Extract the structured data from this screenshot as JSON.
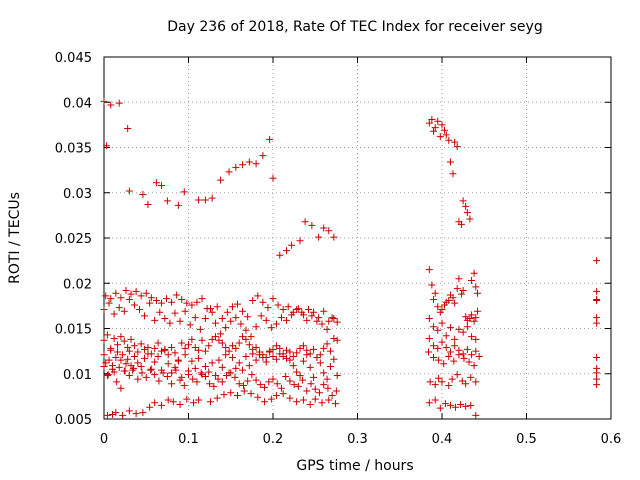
{
  "chart_data": {
    "type": "scatter",
    "title": "Day 236 of 2018, Rate Of TEC Index for receiver seyg",
    "xlabel": "GPS time / hours",
    "ylabel": "ROTI / TECUs",
    "xlim": [
      0,
      0.6
    ],
    "ylim": [
      0.005,
      0.045
    ],
    "xticks": [
      0,
      0.1,
      0.2,
      0.3,
      0.4,
      0.5,
      0.6
    ],
    "xtick_labels": [
      "0",
      "0.1",
      "0.2",
      "0.3",
      "0.4",
      "0.5",
      "0.6"
    ],
    "yticks": [
      0.005,
      0.01,
      0.015,
      0.02,
      0.025,
      0.03,
      0.035,
      0.04,
      0.045
    ],
    "ytick_labels": [
      "0.005",
      "0.01",
      "0.015",
      "0.02",
      "0.025",
      "0.03",
      "0.035",
      "0.04",
      "0.045"
    ],
    "grid": true,
    "marker": "plus",
    "color": "#cc0000",
    "series": [
      {
        "name": "seyg",
        "x": [
          0.0,
          0.002,
          0.004,
          0.006,
          0.008,
          0.01,
          0.012,
          0.014,
          0.016,
          0.018,
          0.02,
          0.022,
          0.024,
          0.026,
          0.028,
          0.03,
          0.032,
          0.034,
          0.036,
          0.04,
          0.044,
          0.048,
          0.052,
          0.056,
          0.06,
          0.064,
          0.068,
          0.072,
          0.076,
          0.08,
          0.084,
          0.088,
          0.092,
          0.096,
          0.1,
          0.104,
          0.108,
          0.112,
          0.116,
          0.12,
          0.124,
          0.128,
          0.132,
          0.136,
          0.14,
          0.144,
          0.148,
          0.152,
          0.156,
          0.16,
          0.164,
          0.168,
          0.172,
          0.176,
          0.18,
          0.184,
          0.188,
          0.192,
          0.196,
          0.2,
          0.204,
          0.208,
          0.212,
          0.216,
          0.22,
          0.224,
          0.228,
          0.232,
          0.236,
          0.24,
          0.244,
          0.248,
          0.252,
          0.256,
          0.26,
          0.264,
          0.268,
          0.272,
          0.276,
          0.0,
          0.004,
          0.008,
          0.012,
          0.016,
          0.02,
          0.024,
          0.028,
          0.032,
          0.036,
          0.04,
          0.044,
          0.048,
          0.052,
          0.056,
          0.06,
          0.064,
          0.068,
          0.072,
          0.076,
          0.08,
          0.084,
          0.088,
          0.092,
          0.096,
          0.1,
          0.104,
          0.108,
          0.112,
          0.116,
          0.12,
          0.124,
          0.128,
          0.132,
          0.136,
          0.14,
          0.144,
          0.148,
          0.152,
          0.156,
          0.16,
          0.164,
          0.168,
          0.172,
          0.176,
          0.18,
          0.184,
          0.188,
          0.192,
          0.196,
          0.2,
          0.204,
          0.208,
          0.212,
          0.216,
          0.22,
          0.224,
          0.228,
          0.232,
          0.236,
          0.24,
          0.244,
          0.248,
          0.252,
          0.256,
          0.26,
          0.264,
          0.268,
          0.272,
          0.276,
          0.0,
          0.006,
          0.012,
          0.018,
          0.024,
          0.03,
          0.036,
          0.042,
          0.048,
          0.054,
          0.06,
          0.066,
          0.072,
          0.078,
          0.084,
          0.09,
          0.096,
          0.102,
          0.108,
          0.114,
          0.12,
          0.126,
          0.132,
          0.138,
          0.144,
          0.15,
          0.156,
          0.162,
          0.168,
          0.174,
          0.18,
          0.186,
          0.192,
          0.198,
          0.204,
          0.21,
          0.216,
          0.222,
          0.228,
          0.234,
          0.24,
          0.246,
          0.252,
          0.258,
          0.264,
          0.27,
          0.276,
          0.002,
          0.008,
          0.014,
          0.02,
          0.026,
          0.032,
          0.038,
          0.044,
          0.05,
          0.056,
          0.062,
          0.068,
          0.074,
          0.08,
          0.086,
          0.092,
          0.098,
          0.104,
          0.11,
          0.116,
          0.122,
          0.128,
          0.134,
          0.14,
          0.146,
          0.152,
          0.158,
          0.164,
          0.17,
          0.176,
          0.182,
          0.188,
          0.194,
          0.2,
          0.206,
          0.212,
          0.218,
          0.224,
          0.23,
          0.236,
          0.242,
          0.248,
          0.254,
          0.26,
          0.266,
          0.272,
          0.0,
          0.005,
          0.01,
          0.015,
          0.02,
          0.025,
          0.03,
          0.035,
          0.04,
          0.045,
          0.05,
          0.055,
          0.06,
          0.065,
          0.07,
          0.075,
          0.08,
          0.085,
          0.09,
          0.095,
          0.1,
          0.105,
          0.11,
          0.115,
          0.12,
          0.125,
          0.13,
          0.135,
          0.14,
          0.145,
          0.15,
          0.155,
          0.16,
          0.165,
          0.17,
          0.175,
          0.18,
          0.185,
          0.19,
          0.195,
          0.2,
          0.205,
          0.21,
          0.215,
          0.22,
          0.225,
          0.23,
          0.235,
          0.24,
          0.245,
          0.25,
          0.255,
          0.26,
          0.265,
          0.27,
          0.275,
          0.0,
          0.003,
          0.008,
          0.018,
          0.028,
          0.03,
          0.046,
          0.052,
          0.062,
          0.068,
          0.075,
          0.088,
          0.095,
          0.112,
          0.12,
          0.128,
          0.138,
          0.148,
          0.156,
          0.164,
          0.172,
          0.18,
          0.188,
          0.196,
          0.2,
          0.208,
          0.216,
          0.222,
          0.232,
          0.238,
          0.246,
          0.254,
          0.26,
          0.266,
          0.272,
          0.004,
          0.01,
          0.014,
          0.022,
          0.03,
          0.038,
          0.046,
          0.054,
          0.06,
          0.068,
          0.076,
          0.082,
          0.09,
          0.098,
          0.106,
          0.112,
          0.126,
          0.134,
          0.142,
          0.15,
          0.158,
          0.166,
          0.174,
          0.182,
          0.19,
          0.198,
          0.204,
          0.212,
          0.22,
          0.228,
          0.236,
          0.244,
          0.25,
          0.258,
          0.266,
          0.274,
          0.385,
          0.388,
          0.39,
          0.392,
          0.395,
          0.398,
          0.4,
          0.403,
          0.405,
          0.408,
          0.41,
          0.413,
          0.415,
          0.418,
          0.42,
          0.423,
          0.425,
          0.428,
          0.43,
          0.433,
          0.435,
          0.438,
          0.44,
          0.442,
          0.385,
          0.388,
          0.39,
          0.392,
          0.395,
          0.398,
          0.4,
          0.403,
          0.405,
          0.408,
          0.41,
          0.413,
          0.415,
          0.418,
          0.42,
          0.423,
          0.425,
          0.428,
          0.43,
          0.433,
          0.435,
          0.438,
          0.44,
          0.442,
          0.385,
          0.39,
          0.395,
          0.4,
          0.405,
          0.41,
          0.415,
          0.42,
          0.425,
          0.43,
          0.435,
          0.44,
          0.385,
          0.39,
          0.395,
          0.4,
          0.405,
          0.41,
          0.415,
          0.42,
          0.425,
          0.43,
          0.435,
          0.44,
          0.384,
          0.39,
          0.396,
          0.402,
          0.408,
          0.414,
          0.42,
          0.426,
          0.432,
          0.438,
          0.444,
          0.386,
          0.392,
          0.396,
          0.4,
          0.408,
          0.412,
          0.418,
          0.424,
          0.428,
          0.434,
          0.44,
          0.385,
          0.392,
          0.398,
          0.404,
          0.41,
          0.416,
          0.422,
          0.428,
          0.434,
          0.44,
          0.583,
          0.583,
          0.583,
          0.583,
          0.583,
          0.583,
          0.583,
          0.583,
          0.583,
          0.583,
          0.583
        ],
        "y": [
          0.0121,
          0.0112,
          0.0098,
          0.0115,
          0.0126,
          0.0109,
          0.0102,
          0.0118,
          0.0124,
          0.0107,
          0.0115,
          0.0121,
          0.0103,
          0.0111,
          0.0116,
          0.0125,
          0.0109,
          0.0104,
          0.0119,
          0.0112,
          0.0108,
          0.0117,
          0.0122,
          0.0105,
          0.0113,
          0.0119,
          0.0104,
          0.0126,
          0.0111,
          0.0101,
          0.0107,
          0.0115,
          0.0096,
          0.0121,
          0.0103,
          0.0114,
          0.0106,
          0.0117,
          0.0099,
          0.0108,
          0.0102,
          0.0112,
          0.0098,
          0.0115,
          0.0107,
          0.0121,
          0.0101,
          0.0118,
          0.0106,
          0.0112,
          0.0104,
          0.0119,
          0.0109,
          0.0122,
          0.0115,
          0.0121,
          0.0118,
          0.0113,
          0.0125,
          0.0119,
          0.0116,
          0.0122,
          0.0119,
          0.0117,
          0.0115,
          0.0109,
          0.0102,
          0.0098,
          0.0114,
          0.0121,
          0.0107,
          0.0096,
          0.0118,
          0.0112,
          0.0101,
          0.0094,
          0.0108,
          0.0116,
          0.0098,
          0.0137,
          0.0143,
          0.0128,
          0.0139,
          0.0132,
          0.0141,
          0.0136,
          0.0129,
          0.0138,
          0.0131,
          0.0124,
          0.0133,
          0.0127,
          0.0129,
          0.0122,
          0.0128,
          0.0134,
          0.0125,
          0.0127,
          0.0121,
          0.0129,
          0.0123,
          0.0114,
          0.0134,
          0.0128,
          0.0132,
          0.0138,
          0.0129,
          0.0126,
          0.0137,
          0.0125,
          0.0131,
          0.0138,
          0.0141,
          0.0137,
          0.0134,
          0.0129,
          0.0125,
          0.0131,
          0.0128,
          0.0134,
          0.0141,
          0.0138,
          0.0132,
          0.0127,
          0.0129,
          0.0124,
          0.0121,
          0.0118,
          0.0124,
          0.0127,
          0.0131,
          0.0128,
          0.0122,
          0.0126,
          0.0124,
          0.0119,
          0.0123,
          0.0128,
          0.0131,
          0.0126,
          0.0122,
          0.0127,
          0.0118,
          0.0121,
          0.0128,
          0.0133,
          0.0125,
          0.0139,
          0.0137,
          0.0171,
          0.0178,
          0.0166,
          0.0173,
          0.0169,
          0.0182,
          0.0176,
          0.0171,
          0.0164,
          0.0178,
          0.0159,
          0.0168,
          0.0161,
          0.0156,
          0.0167,
          0.0158,
          0.0169,
          0.0154,
          0.0162,
          0.0149,
          0.0161,
          0.0172,
          0.0156,
          0.0144,
          0.0151,
          0.0158,
          0.0162,
          0.0155,
          0.0148,
          0.0141,
          0.0152,
          0.0164,
          0.0159,
          0.0151,
          0.0155,
          0.0162,
          0.0159,
          0.0165,
          0.0171,
          0.0168,
          0.0159,
          0.0164,
          0.0158,
          0.0155,
          0.0149,
          0.0162,
          0.0157,
          0.0186,
          0.0183,
          0.0189,
          0.0184,
          0.0192,
          0.0188,
          0.0191,
          0.0186,
          0.0189,
          0.0184,
          0.0181,
          0.0178,
          0.0183,
          0.0179,
          0.0187,
          0.0182,
          0.0178,
          0.0176,
          0.0179,
          0.0183,
          0.0172,
          0.0168,
          0.0174,
          0.0161,
          0.0168,
          0.0174,
          0.0177,
          0.0169,
          0.0163,
          0.0181,
          0.0186,
          0.0179,
          0.0173,
          0.0183,
          0.0176,
          0.0171,
          0.0174,
          0.0168,
          0.0172,
          0.0165,
          0.0171,
          0.0168,
          0.0162,
          0.0169,
          0.0158,
          0.0161,
          0.0108,
          0.0099,
          0.0105,
          0.0091,
          0.0084,
          0.0103,
          0.0098,
          0.0106,
          0.0094,
          0.0101,
          0.0096,
          0.0104,
          0.0099,
          0.0092,
          0.0101,
          0.0097,
          0.0089,
          0.0104,
          0.0093,
          0.0087,
          0.0099,
          0.0094,
          0.0091,
          0.0101,
          0.0097,
          0.0089,
          0.0086,
          0.0094,
          0.0091,
          0.0098,
          0.0101,
          0.0096,
          0.0089,
          0.0087,
          0.0092,
          0.0099,
          0.0093,
          0.0088,
          0.0085,
          0.0091,
          0.0094,
          0.0089,
          0.0084,
          0.0097,
          0.0092,
          0.0088,
          0.0086,
          0.0093,
          0.0081,
          0.0089,
          0.0083,
          0.0079,
          0.0088,
          0.0084,
          0.0076,
          0.0081,
          0.0401,
          0.0352,
          0.0397,
          0.0399,
          0.0371,
          0.0302,
          0.0298,
          0.0287,
          0.0311,
          0.0308,
          0.0291,
          0.0286,
          0.0301,
          0.0292,
          0.0292,
          0.0294,
          0.0314,
          0.0323,
          0.0328,
          0.0331,
          0.0334,
          0.0332,
          0.0341,
          0.0359,
          0.0316,
          0.0231,
          0.0236,
          0.0242,
          0.0247,
          0.0268,
          0.0264,
          0.0251,
          0.0261,
          0.0258,
          0.0251,
          0.0054,
          0.0055,
          0.0057,
          0.0054,
          0.0059,
          0.0056,
          0.0057,
          0.0063,
          0.0068,
          0.0065,
          0.0071,
          0.0069,
          0.0066,
          0.0072,
          0.0068,
          0.0071,
          0.0069,
          0.0073,
          0.0077,
          0.0079,
          0.0076,
          0.0081,
          0.0078,
          0.0074,
          0.0069,
          0.0072,
          0.0076,
          0.0078,
          0.0073,
          0.0069,
          0.0071,
          0.0066,
          0.0072,
          0.0068,
          0.0071,
          0.0067,
          0.0377,
          0.0381,
          0.0368,
          0.0372,
          0.0379,
          0.0362,
          0.0375,
          0.0369,
          0.0364,
          0.0358,
          0.0334,
          0.0321,
          0.0356,
          0.0351,
          0.0268,
          0.0265,
          0.0291,
          0.0285,
          0.0278,
          0.0271,
          0.0203,
          0.0211,
          0.0196,
          0.0189,
          0.0215,
          0.0198,
          0.0182,
          0.0189,
          0.0174,
          0.0168,
          0.0171,
          0.0176,
          0.0179,
          0.0181,
          0.0187,
          0.0184,
          0.0178,
          0.0194,
          0.0205,
          0.0188,
          0.0192,
          0.0163,
          0.0159,
          0.0161,
          0.0165,
          0.0158,
          0.0162,
          0.0169,
          0.0161,
          0.0152,
          0.0148,
          0.0156,
          0.0142,
          0.0151,
          0.0138,
          0.0149,
          0.0146,
          0.0152,
          0.0141,
          0.0138,
          0.0139,
          0.0131,
          0.0128,
          0.0135,
          0.0129,
          0.0124,
          0.0131,
          0.0126,
          0.0122,
          0.0127,
          0.0121,
          0.0125,
          0.0124,
          0.0118,
          0.0115,
          0.0111,
          0.0119,
          0.0114,
          0.0121,
          0.0117,
          0.0113,
          0.0109,
          0.0119,
          0.0091,
          0.0088,
          0.0095,
          0.0091,
          0.0087,
          0.0094,
          0.0099,
          0.0092,
          0.0089,
          0.0096,
          0.0091,
          0.0068,
          0.0071,
          0.0062,
          0.0067,
          0.0065,
          0.0063,
          0.0066,
          0.0064,
          0.0065,
          0.0054,
          0.0225,
          0.0191,
          0.0181,
          0.0182,
          0.0162,
          0.0156,
          0.0118,
          0.0106,
          0.0101,
          0.0094,
          0.0088
        ]
      }
    ]
  }
}
